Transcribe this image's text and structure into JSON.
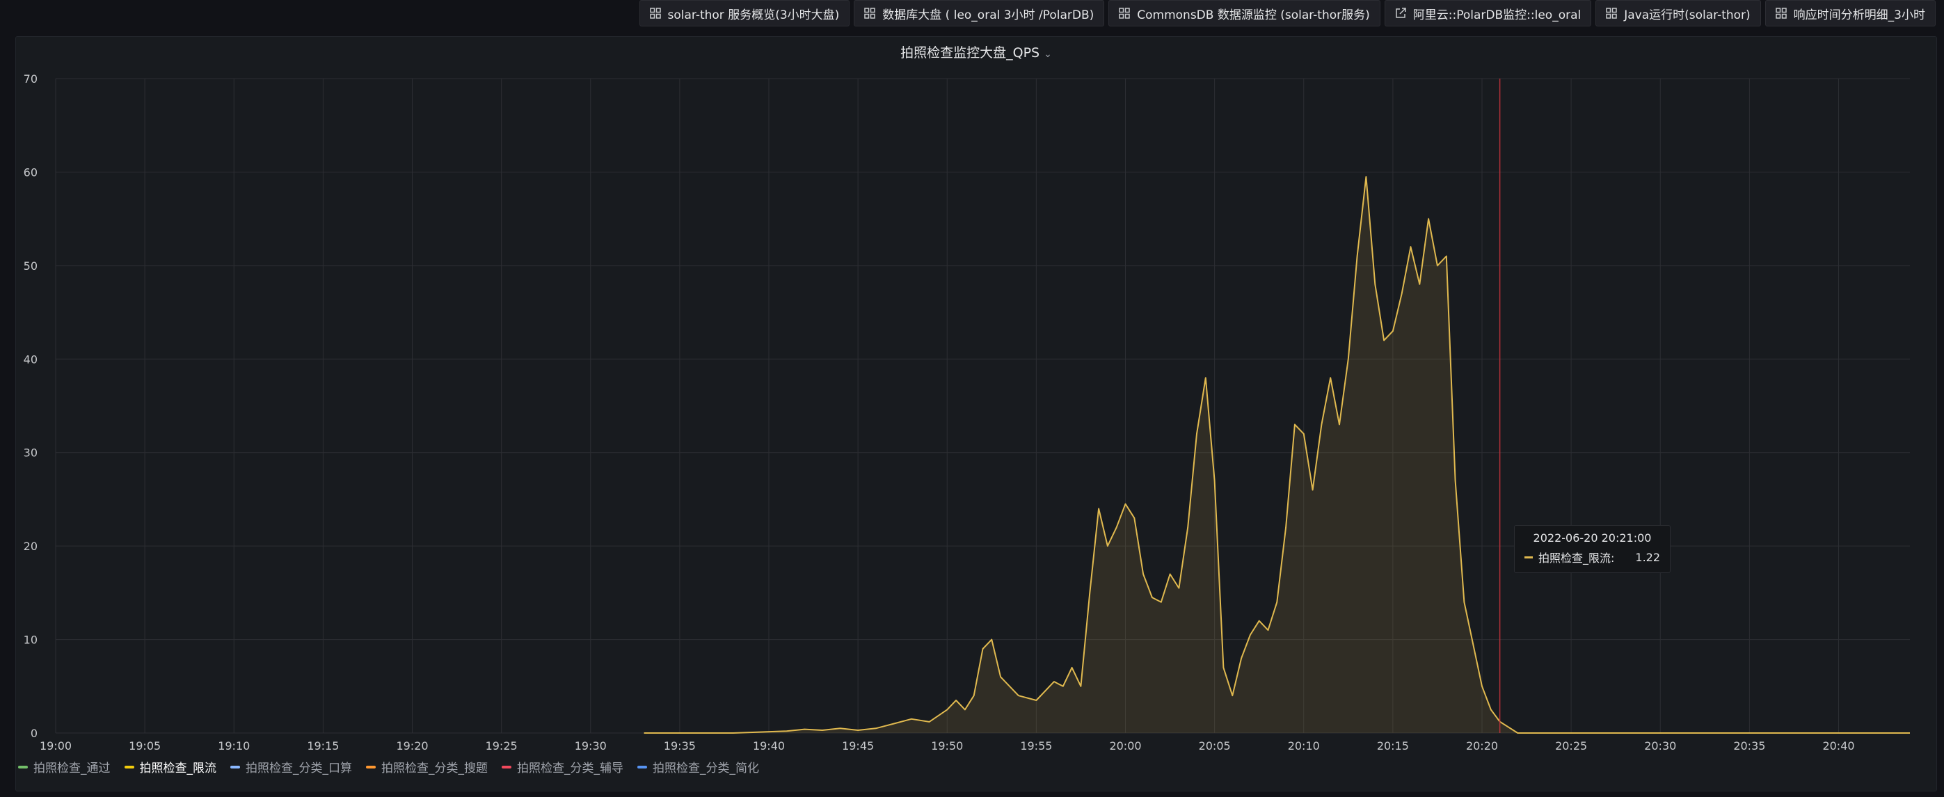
{
  "toolbar": {
    "links": [
      {
        "label": "solar-thor 服务概览(3小时大盘)",
        "icon": "dashboard-grid-icon"
      },
      {
        "label": "数据库大盘 ( leo_oral 3小时 /PolarDB)",
        "icon": "dashboard-grid-icon"
      },
      {
        "label": "CommonsDB 数据源监控 (solar-thor服务)",
        "icon": "dashboard-grid-icon"
      },
      {
        "label": "阿里云::PolarDB监控::leo_oral",
        "icon": "external-link-icon"
      },
      {
        "label": "Java运行时(solar-thor)",
        "icon": "dashboard-grid-icon"
      },
      {
        "label": "响应时间分析明细_3小时",
        "icon": "dashboard-grid-icon"
      }
    ]
  },
  "panel": {
    "title": "拍照检查监控大盘_QPS",
    "chevron": "⌄"
  },
  "tooltip": {
    "time": "2022-06-20 20:21:00",
    "series": "拍照检查_限流:",
    "value": "1.22"
  },
  "legend": [
    {
      "label": "拍照检查_通过",
      "color": "#73bf69",
      "active": false
    },
    {
      "label": "拍照检查_限流",
      "color": "#f2cc0c",
      "active": true
    },
    {
      "label": "拍照检查_分类_口算",
      "color": "#8ab8ff",
      "active": false
    },
    {
      "label": "拍照检查_分类_搜题",
      "color": "#ff9830",
      "active": false
    },
    {
      "label": "拍照检查_分类_辅导",
      "color": "#f2495c",
      "active": false
    },
    {
      "label": "拍照检查_分类_简化",
      "color": "#5794f2",
      "active": false
    }
  ],
  "chart_data": {
    "type": "area",
    "ylim": [
      0,
      70
    ],
    "yticks": [
      0,
      10,
      20,
      30,
      40,
      50,
      60,
      70
    ],
    "xlim": [
      "19:00",
      "20:44"
    ],
    "xticks": [
      "19:00",
      "19:05",
      "19:10",
      "19:15",
      "19:20",
      "19:25",
      "19:30",
      "19:35",
      "19:40",
      "19:45",
      "19:50",
      "19:55",
      "20:00",
      "20:05",
      "20:10",
      "20:15",
      "20:20",
      "20:25",
      "20:30",
      "20:35",
      "20:40"
    ],
    "cursor_time": "20:21",
    "series": [
      {
        "name": "拍照检查_限流",
        "color": "#e0b94f",
        "x": [
          "19:33",
          "19:38",
          "19:41",
          "19:42",
          "19:43",
          "19:44",
          "19:45",
          "19:46",
          "19:47",
          "19:48",
          "19:49",
          "19:50",
          "19:50:30",
          "19:51",
          "19:51:30",
          "19:52",
          "19:52:30",
          "19:53",
          "19:54",
          "19:55",
          "19:56",
          "19:56:30",
          "19:57",
          "19:57:30",
          "19:58",
          "19:58:30",
          "19:59",
          "19:59:30",
          "20:00",
          "20:00:30",
          "20:01",
          "20:01:30",
          "20:02",
          "20:02:30",
          "20:03",
          "20:03:30",
          "20:04",
          "20:04:30",
          "20:05",
          "20:05:30",
          "20:06",
          "20:06:30",
          "20:07",
          "20:07:30",
          "20:08",
          "20:08:30",
          "20:09",
          "20:09:30",
          "20:10",
          "20:10:30",
          "20:11",
          "20:11:30",
          "20:12",
          "20:12:30",
          "20:13",
          "20:13:30",
          "20:14",
          "20:14:30",
          "20:15",
          "20:15:30",
          "20:16",
          "20:16:30",
          "20:17",
          "20:17:30",
          "20:18",
          "20:18:30",
          "20:19",
          "20:19:30",
          "20:20",
          "20:20:30",
          "20:21",
          "20:22",
          "20:44"
        ],
        "y": [
          0,
          0,
          0.2,
          0.4,
          0.3,
          0.5,
          0.3,
          0.5,
          1.0,
          1.5,
          1.2,
          2.5,
          3.5,
          2.5,
          4,
          9,
          10,
          6,
          4,
          3.5,
          5.5,
          5,
          7,
          5,
          15,
          24,
          20,
          22,
          24.5,
          23,
          17,
          14.5,
          14,
          17,
          15.5,
          22,
          32,
          38,
          27,
          7,
          4,
          8,
          10.5,
          12,
          11,
          14,
          22,
          33,
          32,
          26,
          33,
          38,
          33,
          40,
          51,
          59.5,
          48,
          42,
          43,
          47,
          52,
          48,
          55,
          50,
          51,
          27,
          14,
          9.5,
          5,
          2.5,
          1.22,
          0,
          0
        ]
      }
    ]
  }
}
